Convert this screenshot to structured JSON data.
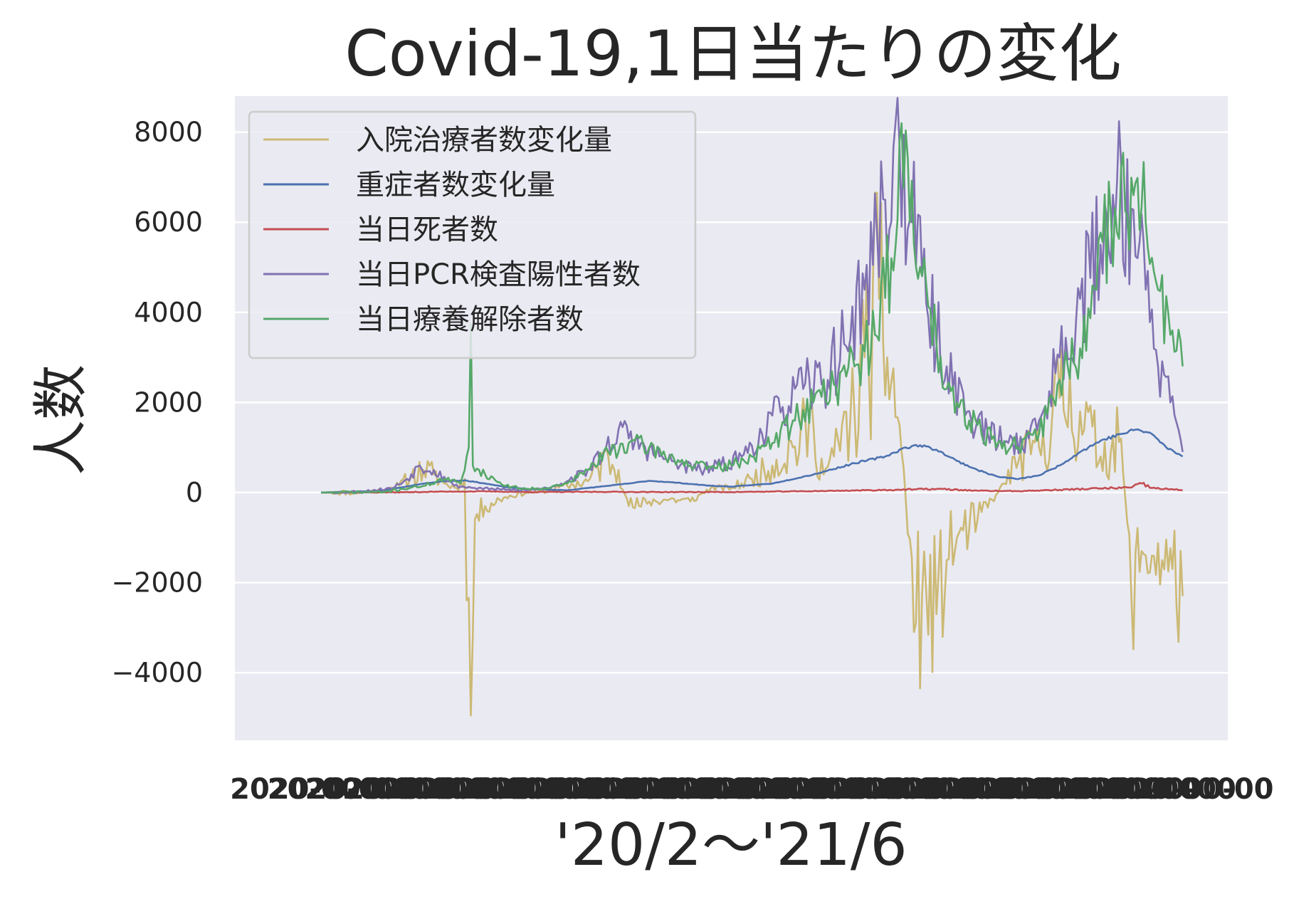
{
  "chart_data": {
    "type": "line",
    "title": "Covid-19,1日当たりの変化",
    "xlabel": "'20/2〜'21/6",
    "ylabel": "人数",
    "ylim": [
      -5500,
      8800
    ],
    "yticks": [
      -4000,
      -2000,
      0,
      2000,
      4000,
      6000,
      8000
    ],
    "ytick_labels": [
      "−4000",
      "−2000",
      "0",
      "2000",
      "4000",
      "6000",
      "8000"
    ],
    "xlim": [
      -42,
      442
    ],
    "x_start": 0,
    "x_end": 420,
    "grid": true,
    "legend_position": "upper-left",
    "background": "#eaeaf2",
    "series": [
      {
        "name": "入院治療者数変化量",
        "color": "#ccb974",
        "anchors": [
          [
            0,
            0
          ],
          [
            20,
            5
          ],
          [
            30,
            50
          ],
          [
            38,
            150
          ],
          [
            44,
            350
          ],
          [
            50,
            500
          ],
          [
            55,
            400
          ],
          [
            60,
            200
          ],
          [
            66,
            100
          ],
          [
            70,
            300
          ],
          [
            73,
            -4950
          ],
          [
            75,
            -600
          ],
          [
            80,
            -300
          ],
          [
            90,
            -100
          ],
          [
            100,
            0
          ],
          [
            110,
            50
          ],
          [
            120,
            150
          ],
          [
            130,
            250
          ],
          [
            140,
            800
          ],
          [
            145,
            500
          ],
          [
            150,
            -300
          ],
          [
            155,
            -300
          ],
          [
            160,
            -200
          ],
          [
            170,
            -150
          ],
          [
            180,
            -200
          ],
          [
            190,
            100
          ],
          [
            200,
            100
          ],
          [
            210,
            300
          ],
          [
            220,
            600
          ],
          [
            230,
            1000
          ],
          [
            240,
            1500
          ],
          [
            245,
            400
          ],
          [
            250,
            800
          ],
          [
            260,
            1800
          ],
          [
            265,
            3000
          ],
          [
            272,
            4300
          ],
          [
            276,
            3000
          ],
          [
            282,
            1500
          ],
          [
            290,
            -2900
          ],
          [
            295,
            -2200
          ],
          [
            300,
            -2700
          ],
          [
            305,
            -1500
          ],
          [
            310,
            -1000
          ],
          [
            320,
            -600
          ],
          [
            330,
            0
          ],
          [
            340,
            700
          ],
          [
            350,
            1000
          ],
          [
            360,
            2100
          ],
          [
            370,
            1800
          ],
          [
            380,
            800
          ],
          [
            390,
            1200
          ],
          [
            395,
            -2300
          ],
          [
            400,
            -1300
          ],
          [
            405,
            -1400
          ],
          [
            410,
            -1500
          ],
          [
            415,
            -1700
          ],
          [
            420,
            -2300
          ]
        ],
        "noise": 0.7,
        "noise_floor": 60,
        "seed": 11
      },
      {
        "name": "重症者数変化量",
        "color": "#4c72b0",
        "anchors": [
          [
            0,
            0
          ],
          [
            30,
            40
          ],
          [
            50,
            200
          ],
          [
            60,
            250
          ],
          [
            70,
            270
          ],
          [
            80,
            200
          ],
          [
            90,
            120
          ],
          [
            100,
            80
          ],
          [
            120,
            50
          ],
          [
            130,
            100
          ],
          [
            150,
            200
          ],
          [
            160,
            260
          ],
          [
            170,
            230
          ],
          [
            190,
            150
          ],
          [
            200,
            130
          ],
          [
            220,
            200
          ],
          [
            240,
            400
          ],
          [
            260,
            650
          ],
          [
            275,
            800
          ],
          [
            285,
            1000
          ],
          [
            292,
            1050
          ],
          [
            300,
            950
          ],
          [
            310,
            700
          ],
          [
            320,
            500
          ],
          [
            330,
            350
          ],
          [
            340,
            300
          ],
          [
            350,
            380
          ],
          [
            360,
            600
          ],
          [
            370,
            900
          ],
          [
            380,
            1150
          ],
          [
            390,
            1300
          ],
          [
            398,
            1400
          ],
          [
            405,
            1300
          ],
          [
            412,
            1000
          ],
          [
            420,
            800
          ]
        ],
        "noise": 0.03,
        "noise_floor": 5,
        "seed": 23
      },
      {
        "name": "当日死者数",
        "color": "#c44e52",
        "anchors": [
          [
            0,
            0
          ],
          [
            40,
            5
          ],
          [
            60,
            20
          ],
          [
            80,
            25
          ],
          [
            100,
            10
          ],
          [
            140,
            15
          ],
          [
            160,
            10
          ],
          [
            200,
            10
          ],
          [
            240,
            30
          ],
          [
            280,
            60
          ],
          [
            300,
            80
          ],
          [
            320,
            40
          ],
          [
            340,
            30
          ],
          [
            360,
            60
          ],
          [
            380,
            90
          ],
          [
            395,
            110
          ],
          [
            400,
            200
          ],
          [
            405,
            100
          ],
          [
            420,
            50
          ]
        ],
        "noise": 0.25,
        "noise_floor": 8,
        "seed": 37
      },
      {
        "name": "当日PCR検査陽性者数",
        "color": "#8172b2",
        "anchors": [
          [
            0,
            0
          ],
          [
            20,
            20
          ],
          [
            35,
            100
          ],
          [
            42,
            300
          ],
          [
            48,
            600
          ],
          [
            55,
            500
          ],
          [
            60,
            350
          ],
          [
            65,
            150
          ],
          [
            75,
            100
          ],
          [
            90,
            60
          ],
          [
            100,
            50
          ],
          [
            110,
            100
          ],
          [
            120,
            250
          ],
          [
            130,
            500
          ],
          [
            138,
            900
          ],
          [
            145,
            1400
          ],
          [
            150,
            1200
          ],
          [
            158,
            1000
          ],
          [
            165,
            800
          ],
          [
            175,
            600
          ],
          [
            185,
            500
          ],
          [
            195,
            600
          ],
          [
            205,
            800
          ],
          [
            215,
            1300
          ],
          [
            225,
            1900
          ],
          [
            235,
            2300
          ],
          [
            245,
            2500
          ],
          [
            255,
            3300
          ],
          [
            265,
            4500
          ],
          [
            275,
            6500
          ],
          [
            282,
            7700
          ],
          [
            288,
            6000
          ],
          [
            295,
            4200
          ],
          [
            305,
            2800
          ],
          [
            315,
            1800
          ],
          [
            325,
            1300
          ],
          [
            335,
            1100
          ],
          [
            345,
            1200
          ],
          [
            352,
            1800
          ],
          [
            360,
            3000
          ],
          [
            370,
            4300
          ],
          [
            380,
            5500
          ],
          [
            388,
            6900
          ],
          [
            395,
            6300
          ],
          [
            402,
            4500
          ],
          [
            408,
            2800
          ],
          [
            414,
            2000
          ],
          [
            420,
            900
          ]
        ],
        "noise": 0.28,
        "noise_floor": 30,
        "seed": 53
      },
      {
        "name": "当日療養解除者数",
        "color": "#55a868",
        "anchors": [
          [
            0,
            0
          ],
          [
            30,
            10
          ],
          [
            50,
            150
          ],
          [
            60,
            300
          ],
          [
            68,
            200
          ],
          [
            72,
            1000
          ],
          [
            73,
            3750
          ],
          [
            74,
            600
          ],
          [
            80,
            400
          ],
          [
            90,
            150
          ],
          [
            100,
            80
          ],
          [
            110,
            100
          ],
          [
            120,
            200
          ],
          [
            130,
            500
          ],
          [
            140,
            900
          ],
          [
            150,
            1100
          ],
          [
            160,
            1000
          ],
          [
            170,
            800
          ],
          [
            180,
            600
          ],
          [
            190,
            550
          ],
          [
            200,
            600
          ],
          [
            210,
            800
          ],
          [
            220,
            1100
          ],
          [
            230,
            1600
          ],
          [
            240,
            2000
          ],
          [
            250,
            2400
          ],
          [
            260,
            2800
          ],
          [
            270,
            3500
          ],
          [
            278,
            5200
          ],
          [
            283,
            8200
          ],
          [
            287,
            6000
          ],
          [
            293,
            4800
          ],
          [
            300,
            3300
          ],
          [
            310,
            2000
          ],
          [
            320,
            1500
          ],
          [
            330,
            1100
          ],
          [
            340,
            1000
          ],
          [
            350,
            1300
          ],
          [
            360,
            2500
          ],
          [
            370,
            3200
          ],
          [
            378,
            4500
          ],
          [
            385,
            6200
          ],
          [
            390,
            7200
          ],
          [
            396,
            6600
          ],
          [
            402,
            6000
          ],
          [
            408,
            4500
          ],
          [
            414,
            3500
          ],
          [
            420,
            2800
          ]
        ],
        "noise": 0.22,
        "noise_floor": 30,
        "seed": 71
      }
    ]
  }
}
